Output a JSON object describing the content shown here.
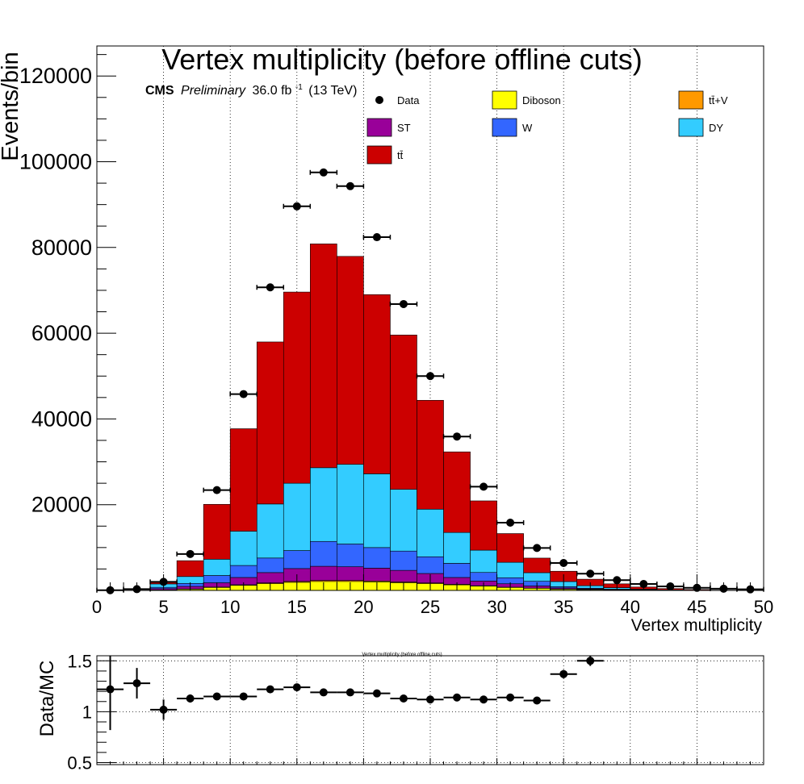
{
  "chart_data": [
    {
      "type": "bar",
      "stacked": true,
      "title": "Vertex multiplicity (before offline cuts)",
      "xlabel": "Vertex multiplicity",
      "ylabel": "Events/bin",
      "xlim": [
        0,
        50
      ],
      "ylim": [
        0,
        127000
      ],
      "x_ticks": [
        0,
        5,
        10,
        15,
        20,
        25,
        30,
        35,
        40,
        45,
        50
      ],
      "y_ticks": [
        20000,
        40000,
        60000,
        80000,
        100000,
        120000
      ],
      "grid": {
        "x": true,
        "y": false
      },
      "legend_position": "top",
      "cms_label": "CMS",
      "cms_preliminary": "Preliminary",
      "lumi_text": "36.0 fb",
      "lumi_superscript": "-1",
      "energy_text": "(13 TeV)",
      "bin_edges": [
        0,
        2,
        4,
        6,
        8,
        10,
        12,
        14,
        16,
        18,
        20,
        22,
        24,
        26,
        28,
        30,
        32,
        34,
        36,
        38,
        40,
        42,
        44,
        46,
        48,
        50
      ],
      "series": [
        {
          "name": "Diboson",
          "color": "#ffff00",
          "values": [
            0,
            0,
            100,
            300,
            700,
            1200,
            1600,
            1900,
            2100,
            2100,
            2000,
            1800,
            1600,
            1300,
            1000,
            700,
            500,
            300,
            200,
            100,
            50,
            20,
            10,
            0,
            0
          ]
        },
        {
          "name": "tt̄+V",
          "color": "#ff9900",
          "values": [
            0,
            0,
            20,
            40,
            80,
            120,
            160,
            200,
            230,
            220,
            200,
            180,
            150,
            120,
            90,
            60,
            40,
            25,
            15,
            8,
            4,
            2,
            0,
            0,
            0
          ]
        },
        {
          "name": "ST",
          "color": "#990099",
          "values": [
            0,
            0,
            300,
            600,
            1000,
            1700,
            2400,
            3000,
            3300,
            3200,
            3000,
            2700,
            2200,
            1600,
            1100,
            800,
            500,
            250,
            150,
            80,
            40,
            20,
            10,
            0,
            0
          ]
        },
        {
          "name": "W",
          "color": "#3366ff",
          "values": [
            0,
            0,
            300,
            700,
            1700,
            2800,
            3400,
            4200,
            5800,
            5300,
            4800,
            4500,
            3900,
            3300,
            2000,
            1400,
            1100,
            300,
            150,
            100,
            50,
            20,
            10,
            0,
            0
          ]
        },
        {
          "name": "DY",
          "color": "#33ccff",
          "values": [
            0,
            0,
            800,
            1600,
            3800,
            8000,
            12600,
            15700,
            17200,
            18600,
            17200,
            14400,
            11100,
            7200,
            5200,
            3600,
            2000,
            1200,
            600,
            350,
            150,
            70,
            30,
            10,
            0
          ]
        },
        {
          "name": "tt̄",
          "color": "#cc0000",
          "values": [
            0,
            0,
            500,
            3700,
            12800,
            23900,
            37800,
            44600,
            52200,
            48500,
            41800,
            36000,
            25400,
            18800,
            11500,
            6700,
            3400,
            2400,
            1500,
            900,
            500,
            300,
            150,
            60,
            30
          ]
        }
      ],
      "data_points": {
        "name": "Data",
        "x": [
          1,
          3,
          5,
          7,
          9,
          11,
          13,
          15,
          17,
          19,
          21,
          23,
          25,
          27,
          29,
          31,
          33,
          35,
          37,
          39,
          41,
          43,
          45,
          47,
          49
        ],
        "y": [
          50,
          300,
          2000,
          8500,
          23400,
          45800,
          70700,
          89600,
          97500,
          94300,
          82400,
          66800,
          50000,
          35900,
          24200,
          15800,
          9900,
          6400,
          3900,
          2400,
          1500,
          950,
          600,
          400,
          250
        ],
        "yerr": [
          10,
          20,
          50,
          100,
          150,
          220,
          270,
          300,
          310,
          310,
          290,
          260,
          230,
          190,
          160,
          130,
          100,
          80,
          65,
          50,
          40,
          30,
          25,
          20,
          15
        ],
        "xerr": 1
      }
    },
    {
      "type": "scatter",
      "title": "Vertex multiplicity (before offline cuts)",
      "xlabel": "",
      "ylabel": "Data/MC",
      "xlim": [
        0,
        50
      ],
      "ylim": [
        0.48,
        1.55
      ],
      "y_ticks": [
        0.5,
        1,
        1.5
      ],
      "y_tick_labels": [
        "0.5",
        "1",
        "1.5"
      ],
      "grid": {
        "x": true,
        "y": true
      },
      "x": [
        1,
        3,
        5,
        7,
        9,
        11,
        13,
        15,
        17,
        19,
        21,
        23,
        25,
        27,
        29,
        31,
        33,
        35,
        37
      ],
      "y": [
        1.22,
        1.28,
        1.02,
        1.13,
        1.15,
        1.15,
        1.22,
        1.24,
        1.19,
        1.19,
        1.18,
        1.13,
        1.12,
        1.14,
        1.12,
        1.14,
        1.11,
        1.37,
        1.5
      ],
      "yerr": [
        0.4,
        0.15,
        0.1,
        0.04,
        0.02,
        0.01,
        0.01,
        0.01,
        0.01,
        0.01,
        0.01,
        0.01,
        0.01,
        0.01,
        0.01,
        0.01,
        0.03,
        0.04,
        0.05
      ],
      "xerr": 1
    }
  ]
}
